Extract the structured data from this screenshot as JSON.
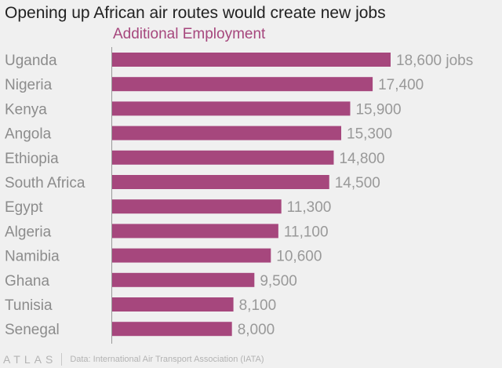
{
  "header": {
    "title": "Opening up African air routes would create new jobs"
  },
  "footer": {
    "logo": "ATLAS",
    "source": "Data: International Air Transport Association (IATA)"
  },
  "colors": {
    "bar": "#a6477d",
    "category_text": "#8c8c8c",
    "value_text": "#999999",
    "axis": "#999999",
    "background": "#f0f0f0"
  },
  "chart_data": {
    "type": "bar",
    "orientation": "horizontal",
    "title": "Opening up African air routes would create new jobs",
    "series": [
      {
        "name": "Additional Employment",
        "values": [
          18600,
          17400,
          15900,
          15300,
          14800,
          14500,
          11300,
          11100,
          10600,
          9500,
          8100,
          8000
        ]
      }
    ],
    "categories": [
      "Uganda",
      "Nigeria",
      "Kenya",
      "Angola",
      "Ethiopia",
      "South Africa",
      "Egypt",
      "Algeria",
      "Namibia",
      "Ghana",
      "Tunisia",
      "Senegal"
    ],
    "value_labels": [
      "18,600 jobs",
      "17,400",
      "15,900",
      "15,300",
      "14,800",
      "14,500",
      "11,300",
      "11,100",
      "10,600",
      "9,500",
      "8,100",
      "8,000"
    ],
    "xlim": [
      0,
      18600
    ],
    "xlabel": "",
    "ylabel": "",
    "grid": false,
    "legend": "top"
  }
}
